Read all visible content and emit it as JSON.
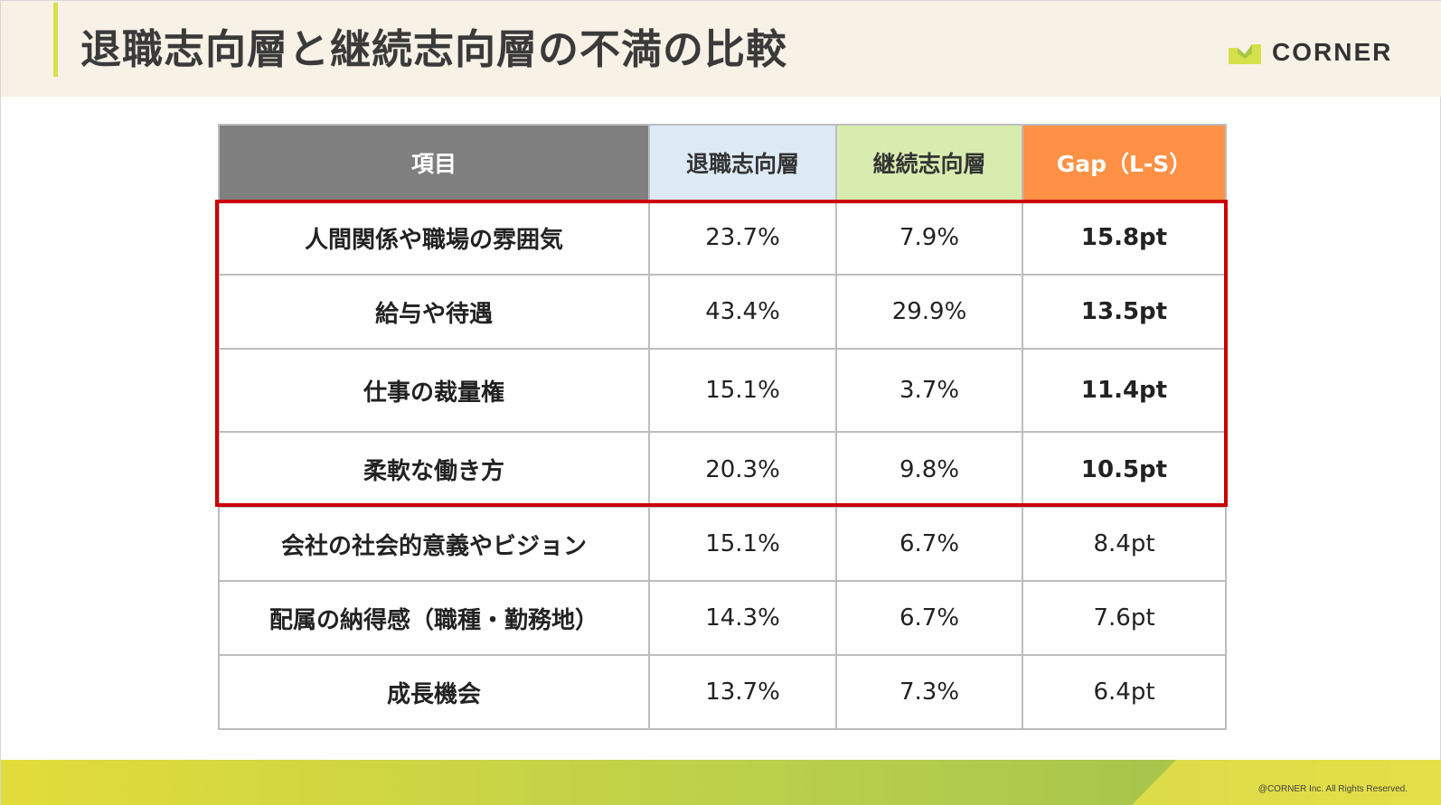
{
  "header": {
    "title": "退職志向層と継続志向層の不満の比較",
    "logo_text": "CORNER"
  },
  "table": {
    "headers": [
      "項目",
      "退職志向層",
      "継続志向層",
      "Gap（L-S）"
    ],
    "rows": [
      {
        "item": "人間関係や職場の雰囲気",
        "leave": "23.7%",
        "stay": "7.9%",
        "gap": "15.8pt",
        "highlight": true
      },
      {
        "item": "給与や待遇",
        "leave": "43.4%",
        "stay": "29.9%",
        "gap": "13.5pt",
        "highlight": true
      },
      {
        "item": "仕事の裁量権",
        "leave": "15.1%",
        "stay": "3.7%",
        "gap": "11.4pt",
        "highlight": true
      },
      {
        "item": "柔軟な働き方",
        "leave": "20.3%",
        "stay": "9.8%",
        "gap": "10.5pt",
        "highlight": true
      },
      {
        "item": "会社の社会的意義やビジョン",
        "leave": "15.1%",
        "stay": "6.7%",
        "gap": "8.4pt",
        "highlight": false
      },
      {
        "item": "配属の納得感（職種・勤務地）",
        "leave": "14.3%",
        "stay": "6.7%",
        "gap": "7.6pt",
        "highlight": false
      },
      {
        "item": "成長機会",
        "leave": "13.7%",
        "stay": "7.3%",
        "gap": "6.4pt",
        "highlight": false
      }
    ]
  },
  "footer": {
    "copyright": "@CORNER Inc. All Rights Reserved."
  },
  "colors": {
    "header_bg": "#f7f1e6",
    "accent_lime": "#d6e04c",
    "item_header": "#7f7f7f",
    "leave_header": "#ddeaf6",
    "stay_header": "#d9ecaf",
    "gap_header": "#ff9147",
    "item_cell": "#fff5e3",
    "highlight_red": "#cc0000"
  }
}
